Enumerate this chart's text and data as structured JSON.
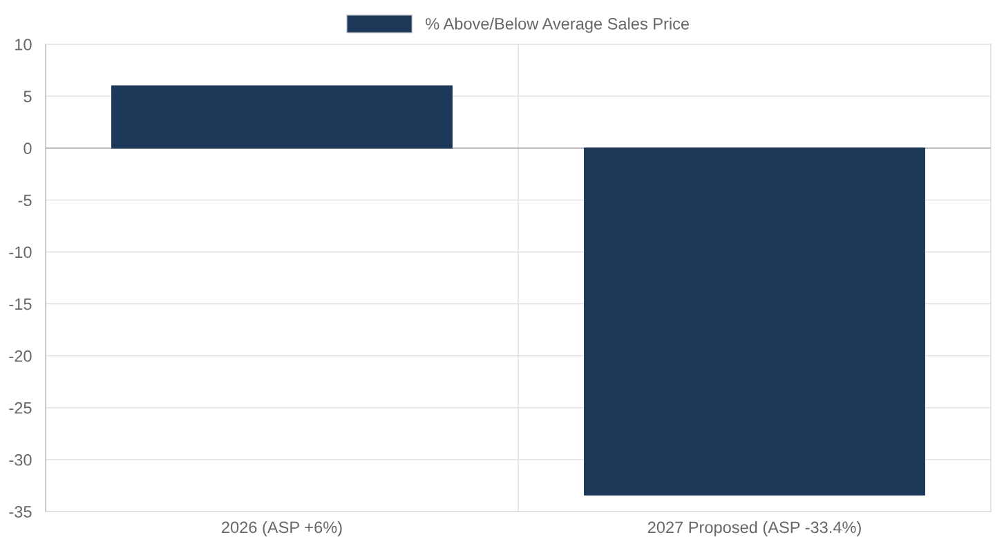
{
  "chart_data": {
    "type": "bar",
    "categories": [
      "2026 (ASP +6%)",
      "2027 Proposed (ASP -33.4%)"
    ],
    "series": [
      {
        "name": "% Above/Below Average Sales Price",
        "color": "#1e3859",
        "values": [
          6,
          -33.4
        ]
      }
    ],
    "ylim": [
      -35,
      10
    ],
    "yticks": [
      10,
      5,
      0,
      -5,
      -10,
      -15,
      -20,
      -25,
      -30,
      -35
    ],
    "grid": true,
    "legend": "top"
  }
}
